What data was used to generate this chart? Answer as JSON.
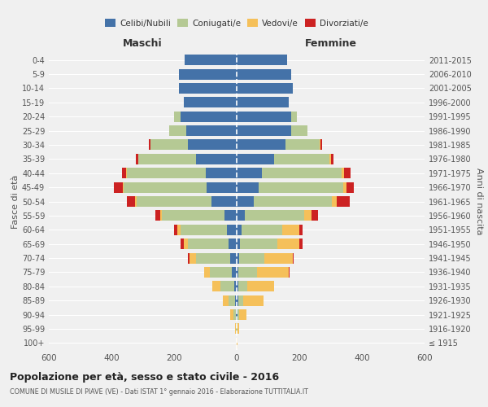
{
  "age_groups": [
    "100+",
    "95-99",
    "90-94",
    "85-89",
    "80-84",
    "75-79",
    "70-74",
    "65-69",
    "60-64",
    "55-59",
    "50-54",
    "45-49",
    "40-44",
    "35-39",
    "30-34",
    "25-29",
    "20-24",
    "15-19",
    "10-14",
    "5-9",
    "0-4"
  ],
  "birth_years": [
    "≤ 1915",
    "1916-1920",
    "1921-1925",
    "1926-1930",
    "1931-1935",
    "1936-1940",
    "1941-1945",
    "1946-1950",
    "1951-1955",
    "1956-1960",
    "1961-1965",
    "1966-1970",
    "1971-1975",
    "1976-1980",
    "1981-1985",
    "1986-1990",
    "1991-1995",
    "1996-2000",
    "2001-2005",
    "2006-2010",
    "2011-2015"
  ],
  "male_celibe": [
    0,
    0,
    2,
    5,
    8,
    15,
    20,
    25,
    30,
    40,
    80,
    95,
    100,
    130,
    155,
    160,
    180,
    170,
    185,
    185,
    165
  ],
  "male_coniugato": [
    0,
    2,
    8,
    20,
    45,
    70,
    110,
    130,
    150,
    200,
    240,
    265,
    250,
    185,
    120,
    55,
    20,
    0,
    0,
    0,
    0
  ],
  "male_vedovo": [
    0,
    3,
    10,
    20,
    25,
    20,
    20,
    15,
    10,
    5,
    5,
    3,
    2,
    0,
    0,
    0,
    0,
    0,
    0,
    0,
    0
  ],
  "male_divorziato": [
    0,
    0,
    0,
    0,
    0,
    0,
    5,
    10,
    10,
    15,
    25,
    30,
    15,
    8,
    5,
    0,
    0,
    0,
    0,
    0,
    0
  ],
  "female_nubile": [
    0,
    0,
    2,
    5,
    5,
    5,
    8,
    10,
    15,
    25,
    55,
    70,
    80,
    120,
    155,
    175,
    175,
    165,
    180,
    175,
    160
  ],
  "female_coniugata": [
    0,
    2,
    5,
    15,
    30,
    60,
    80,
    120,
    130,
    190,
    250,
    270,
    255,
    175,
    110,
    50,
    18,
    0,
    0,
    0,
    0
  ],
  "female_vedova": [
    2,
    5,
    25,
    65,
    85,
    100,
    90,
    70,
    55,
    25,
    15,
    10,
    8,
    5,
    2,
    0,
    0,
    0,
    0,
    0,
    0
  ],
  "female_divorziata": [
    0,
    0,
    0,
    0,
    0,
    5,
    5,
    10,
    10,
    20,
    40,
    25,
    20,
    10,
    5,
    0,
    0,
    0,
    0,
    0,
    0
  ],
  "colors": {
    "celibe": "#4472a8",
    "coniugato": "#b5c994",
    "vedovo": "#f5c05a",
    "divorziato": "#cc2222"
  },
  "xlim": 600,
  "title": "Popolazione per età, sesso e stato civile - 2016",
  "subtitle": "COMUNE DI MUSILE DI PIAVE (VE) - Dati ISTAT 1° gennaio 2016 - Elaborazione TUTTITALIA.IT",
  "xlabel_left": "Maschi",
  "xlabel_right": "Femmine",
  "ylabel_left": "Fasce di età",
  "ylabel_right": "Anni di nascita",
  "legend_labels": [
    "Celibi/Nubili",
    "Coniugati/e",
    "Vedovi/e",
    "Divorziati/e"
  ],
  "bg_color": "#f0f0f0"
}
